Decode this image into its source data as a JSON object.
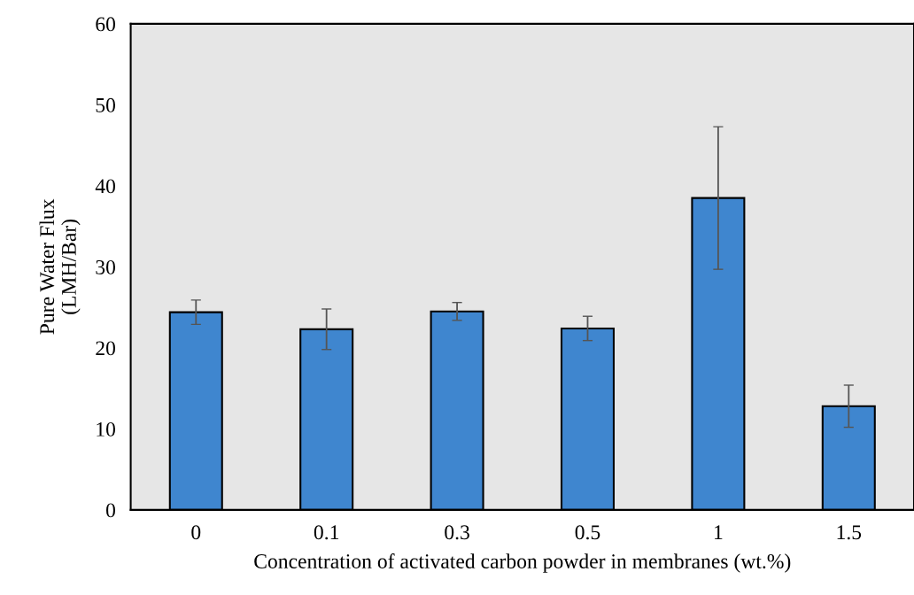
{
  "chart_data": {
    "type": "bar",
    "xlabel": "Concentration of activated carbon powder in membranes (wt.%)",
    "ylabel": "Pure Water Flux\n(LMH/Bar)",
    "categories": [
      "0",
      "0.1",
      "0.3",
      "0.5",
      "1",
      "1.5"
    ],
    "values": [
      24.4,
      22.3,
      24.5,
      22.4,
      38.5,
      12.8
    ],
    "errors": [
      1.5,
      2.5,
      1.1,
      1.5,
      8.8,
      2.6
    ],
    "color": "#3f86cf",
    "ylim": [
      0,
      60
    ],
    "yticks": [
      0,
      10,
      20,
      30,
      40,
      50,
      60
    ],
    "grid": false
  }
}
